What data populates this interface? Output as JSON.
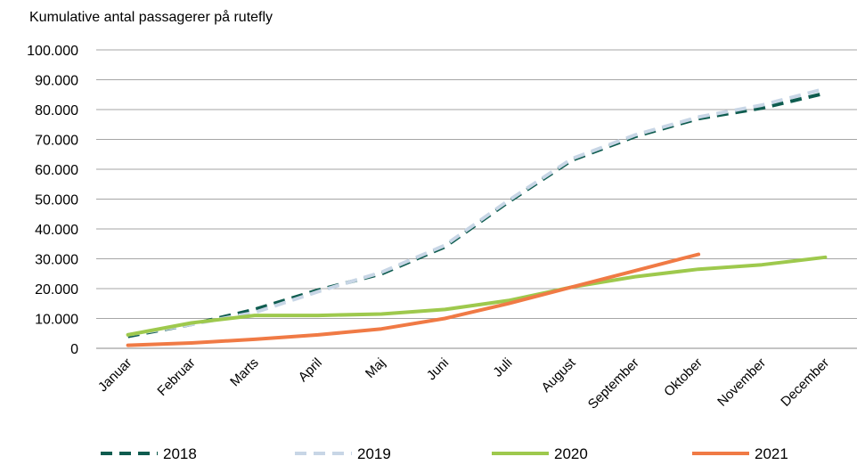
{
  "chart_data": {
    "type": "line",
    "title": "Kumulative antal passagerer på rutefly",
    "xlabel": "",
    "ylabel": "",
    "categories": [
      "Januar",
      "Februar",
      "Marts",
      "April",
      "Maj",
      "Juni",
      "Juli",
      "August",
      "September",
      "Oktober",
      "November",
      "December"
    ],
    "ylim": [
      0,
      100000
    ],
    "yticks": [
      0,
      10000,
      20000,
      30000,
      40000,
      50000,
      60000,
      70000,
      80000,
      90000,
      100000
    ],
    "ytick_labels": [
      "0",
      "10.000",
      "20.000",
      "30.000",
      "40.000",
      "50.000",
      "60.000",
      "70.000",
      "80.000",
      "90.000",
      "100.000"
    ],
    "grid": true,
    "legend_position": "bottom",
    "series": [
      {
        "name": "2018",
        "color": "#0e5c4f",
        "dash": "dashed",
        "values": [
          4000,
          8000,
          13000,
          19500,
          25000,
          34000,
          49000,
          63000,
          71000,
          77000,
          80500,
          85500
        ]
      },
      {
        "name": "2019",
        "color": "#c8d6e6",
        "dash": "dashed",
        "values": [
          4500,
          8000,
          12000,
          19000,
          25500,
          34500,
          49500,
          63500,
          71500,
          77500,
          81500,
          87000
        ]
      },
      {
        "name": "2020",
        "color": "#9ec94d",
        "dash": "solid",
        "values": [
          4500,
          8500,
          11000,
          11000,
          11500,
          13000,
          16000,
          20500,
          24000,
          26500,
          28000,
          30500
        ]
      },
      {
        "name": "2021",
        "color": "#f07a45",
        "dash": "solid",
        "values": [
          1000,
          1800,
          3000,
          4500,
          6500,
          10000,
          15000,
          20500,
          26000,
          31500,
          null,
          null
        ]
      }
    ]
  }
}
